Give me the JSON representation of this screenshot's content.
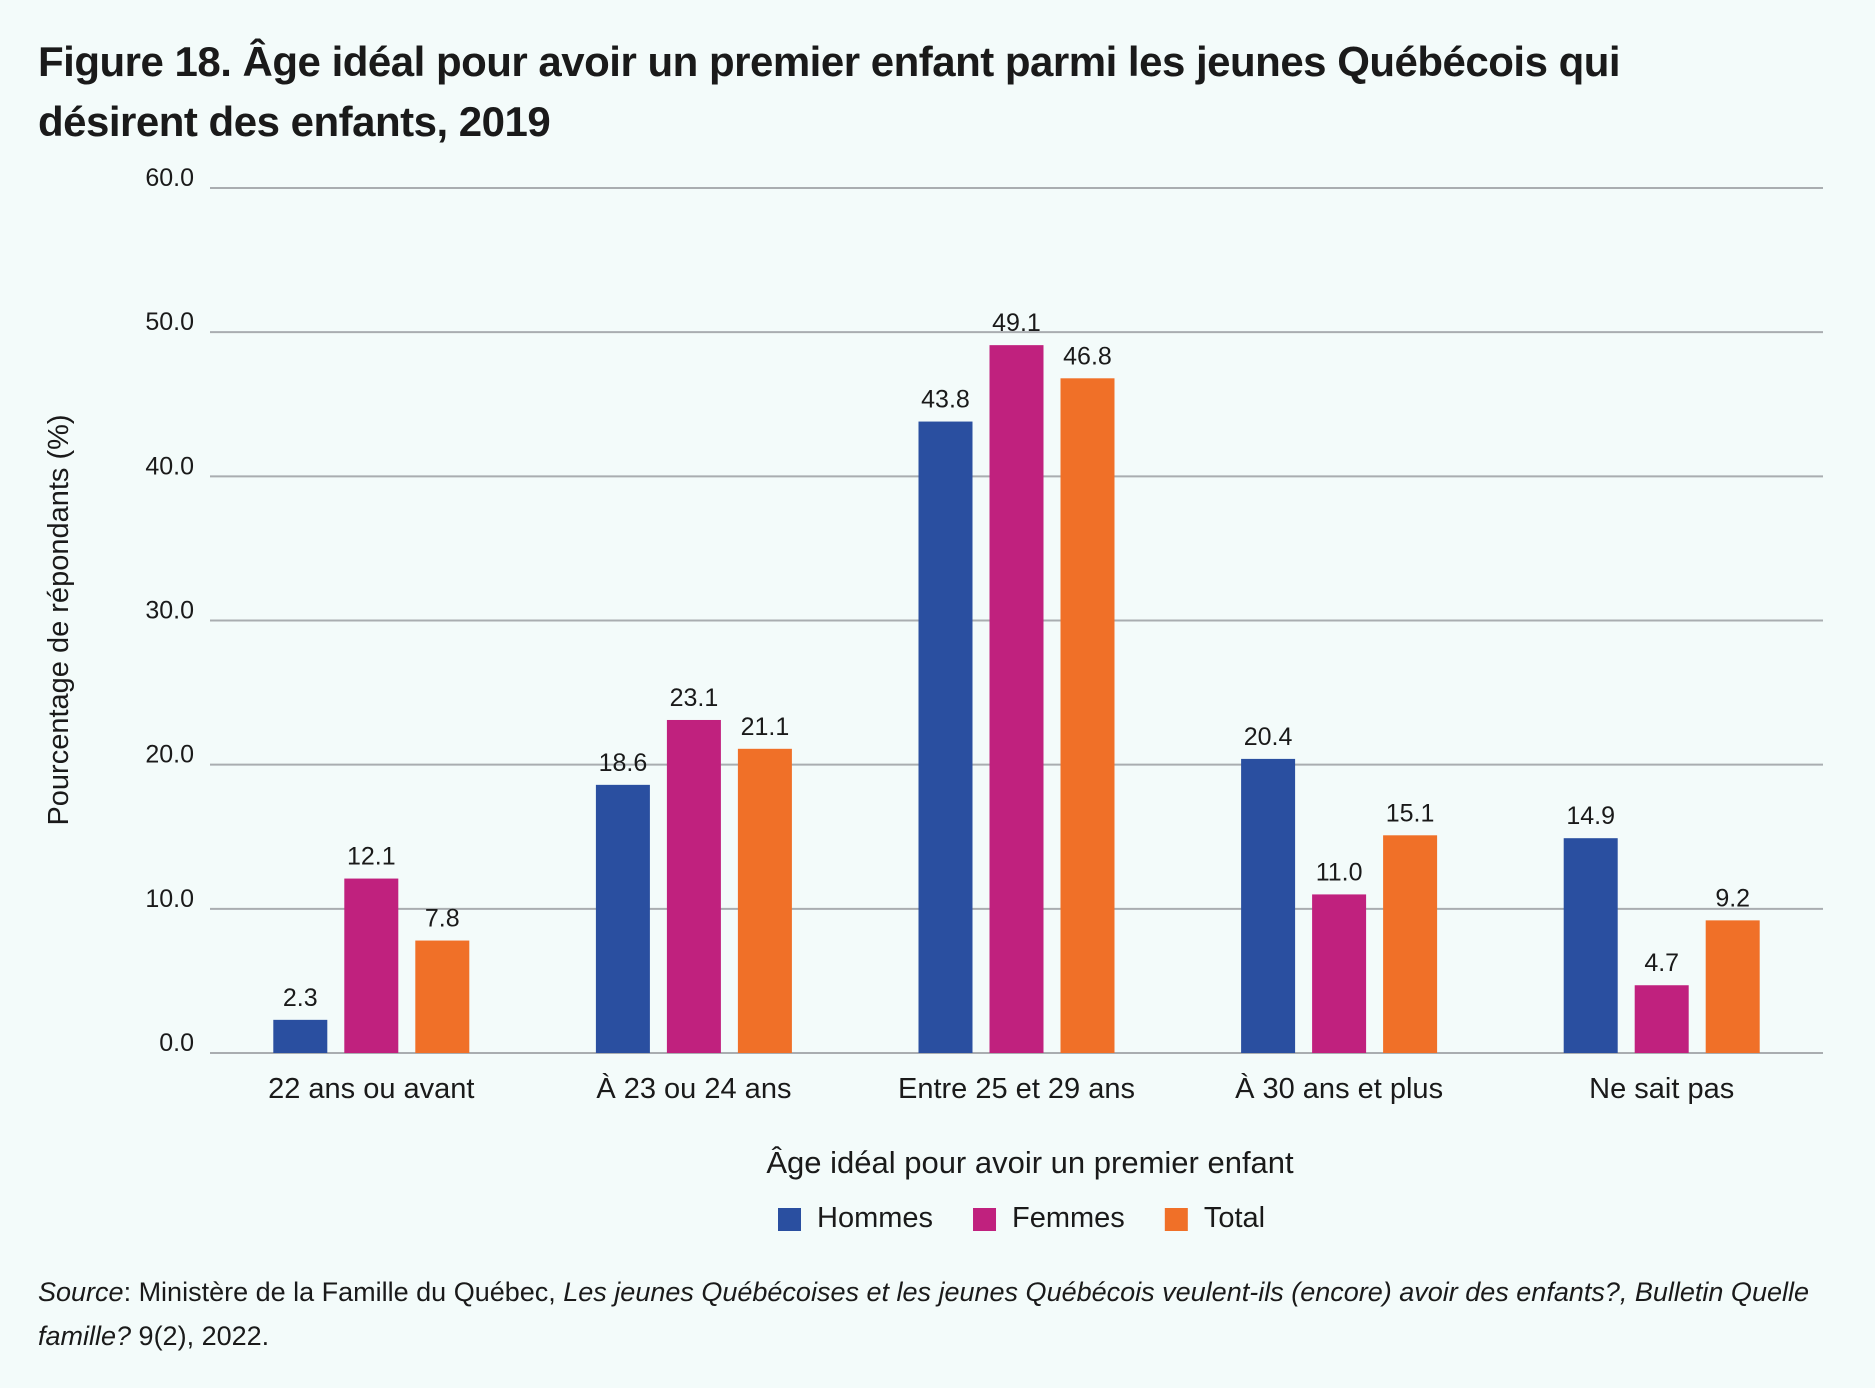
{
  "title": "Figure 18. Âge idéal pour avoir un premier enfant parmi les jeunes Québécois qui désirent des enfants, 2019",
  "source": {
    "label": "Source",
    "p1": ": Ministère de la Famille du Québec, ",
    "p2": "Les jeunes Québécoises et les jeunes Québécois veulent-ils (encore) avoir des enfants?, Bulletin Quelle famille?",
    "p3": " 9(2), 2022."
  },
  "chart_data": {
    "type": "bar",
    "title": "Figure 18. Âge idéal pour avoir un premier enfant parmi les jeunes Québécois qui désirent des enfants, 2019",
    "xlabel": "Âge idéal pour avoir un premier enfant",
    "ylabel": "Pourcentage de répondants (%)",
    "ylim": [
      0,
      60
    ],
    "yticks": [
      "0.0",
      "10.0",
      "20.0",
      "30.0",
      "40.0",
      "50.0",
      "60.0"
    ],
    "grid": true,
    "legend_position": "bottom",
    "categories": [
      "22 ans ou avant",
      "À 23 ou 24 ans",
      "Entre 25 et 29 ans",
      "À 30 ans et plus",
      "Ne sait pas"
    ],
    "series": [
      {
        "name": "Hommes",
        "color": "#2a4fa0",
        "values": [
          2.3,
          18.6,
          43.8,
          20.4,
          14.9
        ],
        "labels": [
          "2.3",
          "18.6",
          "43.8",
          "20.4",
          "14.9"
        ]
      },
      {
        "name": "Femmes",
        "color": "#c0217e",
        "values": [
          12.1,
          23.1,
          49.1,
          11.0,
          4.7
        ],
        "labels": [
          "12.1",
          "23.1",
          "49.1",
          "11.0",
          "4.7"
        ]
      },
      {
        "name": "Total",
        "color": "#f07028",
        "values": [
          7.8,
          21.1,
          46.8,
          15.1,
          9.2
        ],
        "labels": [
          "7.8",
          "21.1",
          "46.8",
          "15.1",
          "9.2"
        ]
      }
    ]
  }
}
